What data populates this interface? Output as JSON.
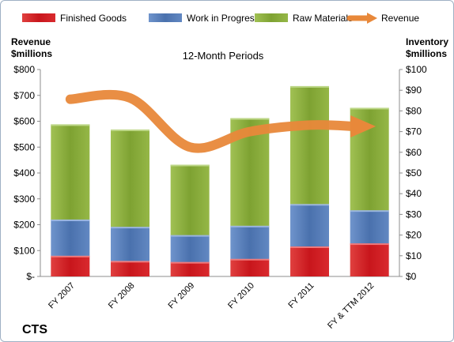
{
  "chart_data": {
    "type": "bar",
    "title": "12-Month Periods",
    "company": "CTS",
    "left_axis": {
      "label_line1": "Revenue",
      "label_line2": "$millions",
      "min": 0,
      "max": 800,
      "step": 100,
      "tick_labels": [
        "$-",
        "$100",
        "$200",
        "$300",
        "$400",
        "$500",
        "$600",
        "$700",
        "$800"
      ]
    },
    "right_axis": {
      "label_line1": "Inventory",
      "label_line2": "$millions",
      "min": 0,
      "max": 100,
      "step": 10,
      "tick_labels": [
        "$0",
        "$10",
        "$20",
        "$30",
        "$40",
        "$50",
        "$60",
        "$70",
        "$80",
        "$90",
        "$100"
      ]
    },
    "categories": [
      "FY 2007",
      "FY 2008",
      "FY 2009",
      "FY 2010",
      "FY 2011",
      "FY & TTM 2012"
    ],
    "stacked_series": [
      {
        "name": "Finished Goods",
        "color": "#d9272e",
        "values": [
          10,
          7.5,
          7,
          8.5,
          14.5,
          16
        ]
      },
      {
        "name": "Work in Progress",
        "color": "#5b82bd",
        "values": [
          17.5,
          16.5,
          13,
          16,
          20.5,
          16
        ]
      },
      {
        "name": "Raw Materials",
        "color": "#8fb140",
        "values": [
          46,
          47,
          34,
          52,
          57,
          49.5
        ]
      }
    ],
    "line_series": {
      "name": "Revenue",
      "color": "#e8883a",
      "values": [
        685,
        690,
        500,
        560,
        585,
        580
      ]
    },
    "legend_position": "top",
    "grid": false
  }
}
